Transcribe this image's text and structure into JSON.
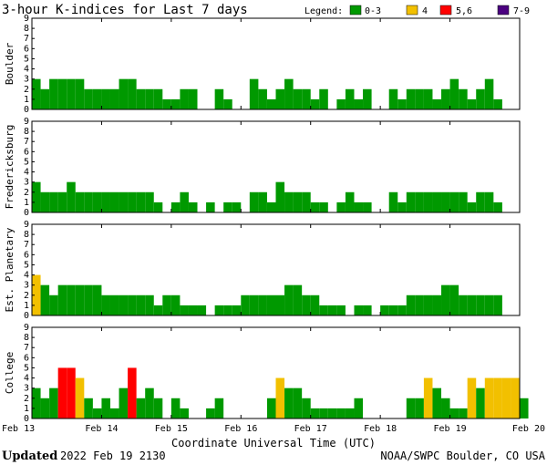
{
  "title": "3-hour K-indices for Last 7 days",
  "legend": {
    "label": "Legend:",
    "items": [
      {
        "label": "0-3",
        "color": "#009900"
      },
      {
        "label": "4",
        "color": "#f2c000"
      },
      {
        "label": "5,6",
        "color": "#ff0000"
      },
      {
        "label": "7-9",
        "color": "#4b0080"
      }
    ]
  },
  "footer": {
    "updated_label": "Updated",
    "updated_time": "2022 Feb 19 2130",
    "source": "NOAA/SWPC Boulder, CO USA"
  },
  "chart_data": {
    "type": "bar",
    "xlabel": "Coordinate Universal Time (UTC)",
    "x_ticks": [
      "Feb 13",
      "Feb 14",
      "Feb 15",
      "Feb 16",
      "Feb 17",
      "Feb 18",
      "Feb 19",
      "Feb 20"
    ],
    "ylim": [
      0,
      9
    ],
    "y_ticks": [
      "0",
      "1",
      "2",
      "3",
      "4",
      "5",
      "6",
      "7",
      "8",
      "9"
    ],
    "bins_per_day": 8,
    "series": [
      {
        "name": "Boulder",
        "values": [
          3,
          2,
          3,
          3,
          3,
          3,
          2,
          2,
          2,
          2,
          3,
          3,
          2,
          2,
          2,
          1,
          1,
          2,
          2,
          0,
          0,
          2,
          1,
          0,
          0,
          3,
          2,
          1,
          2,
          3,
          2,
          2,
          1,
          2,
          0,
          1,
          2,
          1,
          2,
          0,
          0,
          2,
          1,
          2,
          2,
          2,
          1,
          2,
          3,
          2,
          1,
          2,
          3,
          1,
          0
        ]
      },
      {
        "name": "Fredericksburg",
        "values": [
          3,
          2,
          2,
          2,
          3,
          2,
          2,
          2,
          2,
          2,
          2,
          2,
          2,
          2,
          1,
          0,
          1,
          2,
          1,
          0,
          1,
          0,
          1,
          1,
          0,
          2,
          2,
          1,
          3,
          2,
          2,
          2,
          1,
          1,
          0,
          1,
          2,
          1,
          1,
          0,
          0,
          2,
          1,
          2,
          2,
          2,
          2,
          2,
          2,
          2,
          1,
          2,
          2,
          1,
          0
        ]
      },
      {
        "name": "Est. Planetary",
        "values": [
          4,
          3,
          2,
          3,
          3,
          3,
          3,
          3,
          2,
          2,
          2,
          2,
          2,
          2,
          1,
          2,
          2,
          1,
          1,
          1,
          0,
          1,
          1,
          1,
          2,
          2,
          2,
          2,
          2,
          3,
          3,
          2,
          2,
          1,
          1,
          1,
          0,
          1,
          1,
          0,
          1,
          1,
          1,
          2,
          2,
          2,
          2,
          3,
          3,
          2,
          2,
          2,
          2,
          2
        ]
      },
      {
        "name": "College",
        "values": [
          3,
          2,
          3,
          5,
          5,
          4,
          2,
          1,
          2,
          1,
          3,
          5,
          2,
          3,
          2,
          0,
          2,
          1,
          0,
          0,
          1,
          2,
          0,
          0,
          0,
          0,
          0,
          2,
          4,
          3,
          3,
          2,
          1,
          1,
          1,
          1,
          1,
          2,
          0,
          0,
          0,
          0,
          0,
          2,
          2,
          4,
          3,
          2,
          1,
          1,
          4,
          3,
          4,
          4,
          4,
          4,
          2
        ]
      }
    ]
  }
}
